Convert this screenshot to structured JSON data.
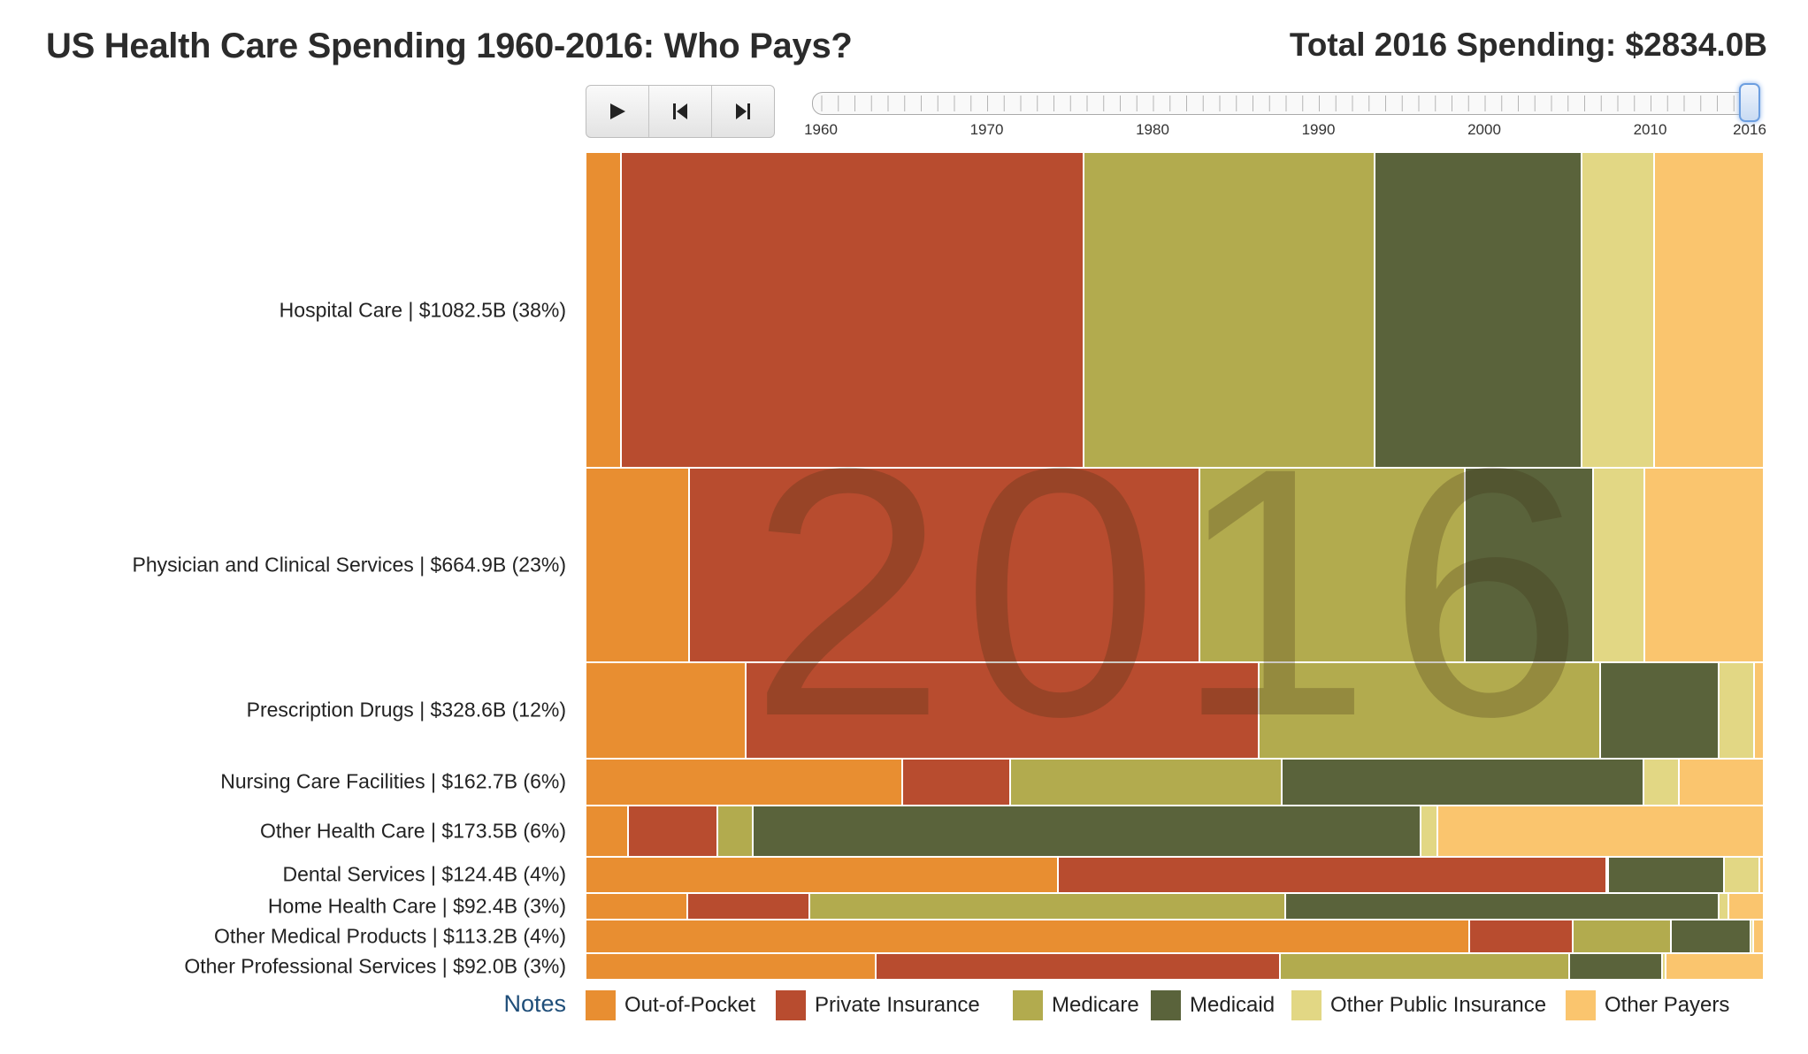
{
  "header": {
    "title": "US Health Care Spending 1960-2016: Who Pays?",
    "total": "Total 2016 Spending: $2834.0B"
  },
  "controls": {
    "play": "play-icon",
    "prev": "skip-back-icon",
    "next": "skip-forward-icon"
  },
  "slider": {
    "min_year": 1960,
    "max_year": 2016,
    "current_year": 2016,
    "labels": [
      "1960",
      "1970",
      "1980",
      "1990",
      "2000",
      "2010",
      "2016"
    ]
  },
  "watermark": "2016",
  "notes_label": "Notes",
  "colors": {
    "out_of_pocket": "#E88E31",
    "private_insurance": "#B84C2F",
    "medicare": "#B2AB4E",
    "medicaid": "#5A633B",
    "other_public": "#E2D784",
    "other_payers": "#FAC56E"
  },
  "chart_data": {
    "type": "mosaic",
    "title": "US Health Care Spending 1960-2016: Who Pays?",
    "year": 2016,
    "total": 2834.0,
    "unit": "Billions USD",
    "payers": [
      "Out-of-Pocket",
      "Private Insurance",
      "Medicare",
      "Medicaid",
      "Other Public Insurance",
      "Other Payers"
    ],
    "categories": [
      {
        "label": "Hospital Care | $1082.5B (38%)",
        "value": 1082.5,
        "shares": [
          3.0,
          39.3,
          24.7,
          17.5,
          6.2,
          9.3
        ]
      },
      {
        "label": "Physician and Clinical Services | $664.9B (23%)",
        "value": 664.9,
        "shares": [
          8.8,
          43.3,
          22.5,
          10.9,
          4.4,
          10.1
        ]
      },
      {
        "label": "Prescription Drugs | $328.6B (12%)",
        "value": 328.6,
        "shares": [
          13.6,
          43.5,
          29.0,
          10.1,
          3.0,
          0.8
        ]
      },
      {
        "label": "Nursing Care Facilities | $162.7B (6%)",
        "value": 162.7,
        "shares": [
          26.9,
          9.1,
          23.1,
          30.7,
          3.0,
          7.2
        ]
      },
      {
        "label": "Other Health Care | $173.5B (6%)",
        "value": 173.5,
        "shares": [
          3.6,
          7.6,
          3.0,
          56.7,
          1.4,
          27.7
        ]
      },
      {
        "label": "Dental Services | $124.4B (4%)",
        "value": 124.4,
        "shares": [
          40.1,
          46.5,
          0.2,
          9.8,
          3.0,
          0.4
        ]
      },
      {
        "label": "Home Health Care | $92.4B (3%)",
        "value": 92.4,
        "shares": [
          8.6,
          10.4,
          40.4,
          36.8,
          0.8,
          3.0
        ]
      },
      {
        "label": "Other Medical Products | $113.2B (4%)",
        "value": 113.2,
        "shares": [
          75.0,
          8.8,
          8.3,
          6.8,
          0.2,
          0.9
        ]
      },
      {
        "label": "Other Professional Services | $92.0B (3%)",
        "value": 92.0,
        "shares": [
          24.6,
          34.3,
          24.6,
          7.9,
          0.3,
          8.3
        ]
      }
    ],
    "legend": [
      "Out-of-Pocket",
      "Private Insurance",
      "Medicare",
      "Medicaid",
      "Other Public Insurance",
      "Other Payers"
    ]
  }
}
